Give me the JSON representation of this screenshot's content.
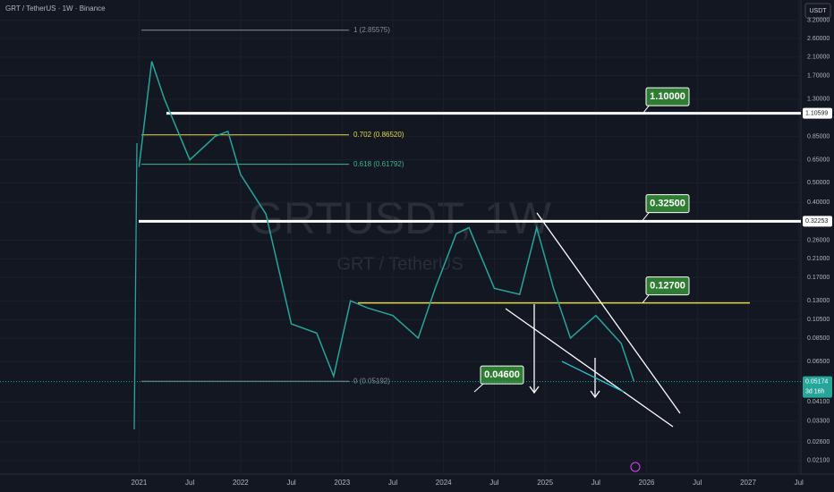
{
  "header": {
    "symbol": "GRT / TetherUS · 1W · Binance",
    "currency": "USDT"
  },
  "watermark": {
    "ticker": "GRTUSDT, 1W",
    "name": "GRT / TetherUS"
  },
  "chart_data": {
    "type": "line",
    "log_scale": true,
    "grid": true,
    "x": [
      2021.0,
      2021.125,
      2021.25,
      2021.5,
      2021.75,
      2021.875,
      2022.0,
      2022.25,
      2022.5,
      2022.75,
      2022.917,
      2023.083,
      2023.25,
      2023.5,
      2023.75,
      2023.917,
      2024.125,
      2024.25,
      2024.5,
      2024.75,
      2024.917,
      2025.083,
      2025.25,
      2025.5,
      2025.75,
      2025.875
    ],
    "series": [
      {
        "color": "#26a69a",
        "values": [
          0.6,
          2.0,
          1.3,
          0.65,
          0.85,
          0.9,
          0.55,
          0.35,
          0.1,
          0.09,
          0.055,
          0.13,
          0.12,
          0.11,
          0.085,
          0.15,
          0.28,
          0.3,
          0.15,
          0.14,
          0.3,
          0.15,
          0.085,
          0.11,
          0.08,
          0.052
        ]
      }
    ],
    "xlim": [
      2019.63,
      2027.52
    ],
    "xticks": [
      2021,
      {
        "value": 2021.5,
        "label": "Jul"
      },
      2022,
      {
        "value": 2022.5,
        "label": "Jul"
      },
      2023,
      {
        "value": 2023.5,
        "label": "Jul"
      },
      2024,
      {
        "value": 2024.5,
        "label": "Jul"
      },
      2025,
      {
        "value": 2025.5,
        "label": "Jul"
      },
      2026,
      {
        "value": 2026.5,
        "label": "Jul"
      },
      2027,
      {
        "value": 2027.5,
        "label": "Jul"
      }
    ],
    "ylim": [
      0.018,
      4.03
    ],
    "yticks": [
      {
        "value": 3.2,
        "label": "3.20000"
      },
      {
        "value": 2.6,
        "label": "2.60000"
      },
      {
        "value": 2.1,
        "label": "2.10000"
      },
      {
        "value": 1.7,
        "label": "1.70000"
      },
      {
        "value": 1.3,
        "label": "1.30000"
      },
      {
        "value": 0.85,
        "label": "0.85000"
      },
      {
        "value": 0.65,
        "label": "0.65000"
      },
      {
        "value": 0.5,
        "label": "0.50000"
      },
      {
        "value": 0.4,
        "label": "0.40000"
      },
      {
        "value": 0.26,
        "label": "0.26000"
      },
      {
        "value": 0.21,
        "label": "0.21000"
      },
      {
        "value": 0.17,
        "label": "0.17000"
      },
      {
        "value": 0.13,
        "label": "0.13000"
      },
      {
        "value": 0.105,
        "label": "0.10500"
      },
      {
        "value": 0.085,
        "label": "0.08500"
      },
      {
        "value": 0.065,
        "label": "0.06500"
      },
      {
        "value": 0.041,
        "label": "0.04100"
      },
      {
        "value": 0.033,
        "label": "0.03300"
      },
      {
        "value": 0.026,
        "label": "0.02600"
      },
      {
        "value": 0.021,
        "label": "0.02100"
      }
    ],
    "price_lines": [
      {
        "value": 1.10599,
        "label": "1.10599",
        "color": "#ffffff"
      },
      {
        "value": 0.32253,
        "label": "0.32253",
        "color": "#ffffff"
      },
      {
        "value": 0.127,
        "color": "#e6d84a"
      }
    ],
    "fib_levels": [
      {
        "value": 2.85575,
        "label": "1 (2.85575)",
        "color": "#8a8d96"
      },
      {
        "value": 0.8652,
        "label": "0.702 (0.86520)",
        "color": "#e6d84a"
      },
      {
        "value": 0.61792,
        "label": "0.618 (0.61792)",
        "color": "#3fb68b"
      },
      {
        "value": 0.05192,
        "label": "0 (0.05192)",
        "color": "#8a8d96"
      }
    ],
    "targets": [
      {
        "value": 1.1,
        "label": "1.10000"
      },
      {
        "value": 0.325,
        "label": "0.32500"
      },
      {
        "value": 0.127,
        "label": "0.12700"
      },
      {
        "value": 0.046,
        "label": "0.04600"
      }
    ],
    "last_price": {
      "value": 0.05174,
      "label": "0.05174",
      "countdown": "3d 16h"
    }
  }
}
